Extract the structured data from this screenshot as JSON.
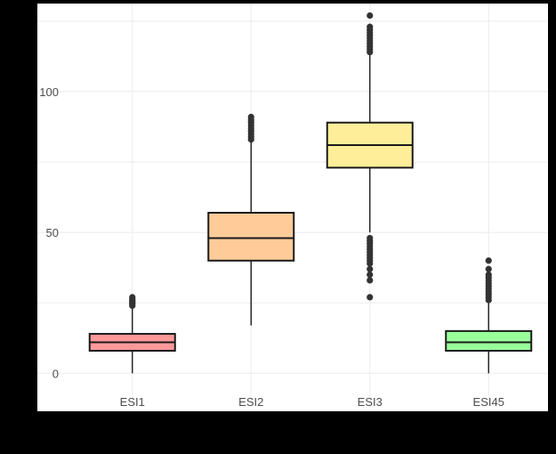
{
  "chart_data": {
    "type": "box",
    "title": "",
    "xlabel": "",
    "ylabel": "",
    "categories": [
      "ESI1",
      "ESI2",
      "ESI3",
      "ESI45"
    ],
    "y_ticks": [
      0,
      50,
      100
    ],
    "ylim": [
      -4,
      130
    ],
    "grid": true,
    "legend": "none",
    "colors": [
      "#ff9999",
      "#ffcc99",
      "#ffee99",
      "#99ff99"
    ],
    "boxes": [
      {
        "category": "ESI1",
        "min": 0,
        "q1": 8,
        "median": 11,
        "q3": 14,
        "max": 23,
        "outliers": [
          24,
          24.5,
          25,
          25.5,
          26,
          26.5,
          27
        ]
      },
      {
        "category": "ESI2",
        "min": 17,
        "q1": 40,
        "median": 48,
        "q3": 57,
        "max": 82,
        "outliers": [
          83,
          84,
          85,
          86,
          87,
          88,
          89,
          90,
          91
        ]
      },
      {
        "category": "ESI3",
        "min": 50,
        "q1": 73,
        "median": 81,
        "q3": 89,
        "max": 113,
        "outliers": [
          27,
          33,
          35,
          37,
          39,
          40,
          41,
          42,
          43,
          44,
          45,
          46,
          47,
          48,
          114,
          115,
          116,
          117,
          118,
          119,
          120,
          121,
          122,
          123,
          127
        ]
      },
      {
        "category": "ESI45",
        "min": 0,
        "q1": 8,
        "median": 11,
        "q3": 15,
        "max": 25,
        "outliers": [
          26,
          27,
          28,
          29,
          30,
          31,
          32,
          33,
          34,
          35,
          37,
          40
        ]
      }
    ]
  }
}
